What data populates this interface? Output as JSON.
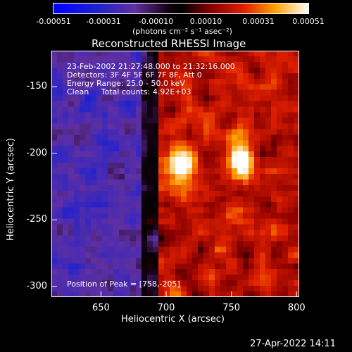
{
  "chart_data": {
    "type": "heatmap",
    "title": "Reconstructed RHESSI Image",
    "xlabel": "Heliocentric X (arcsec)",
    "ylabel": "Heliocentric Y (arcsec)",
    "xlim": [
      612,
      802
    ],
    "ylim": [
      -308,
      -123
    ],
    "x_ticks": [
      "650",
      "700",
      "750",
      "800"
    ],
    "y_ticks": [
      "-150",
      "-200",
      "-250",
      "-300"
    ],
    "x_tick_values": [
      650,
      700,
      750,
      800
    ],
    "y_tick_values": [
      -150,
      -200,
      -250,
      -300
    ],
    "colorbar": {
      "ticks": [
        "-0.00051",
        "-0.00031",
        "-0.00010",
        "0.00010",
        "0.00031",
        "0.00051"
      ],
      "tick_values": [
        -0.00051,
        -0.00031,
        -0.0001,
        0.0001,
        0.00031,
        0.00051
      ],
      "range": [
        -0.00051,
        0.00051
      ],
      "unit_label": "(photons cm⁻² s⁻¹ asec⁻²)"
    },
    "annotations": {
      "time": "23-Feb-2002 21:27:48.000 to 21:32:16.000",
      "detectors": "Detectors: 3F 4F 5F 6F 7F 8F, Att 0",
      "energy": "Energy Range: 25.0 - 50.0 keV",
      "clean": "Clean     Total counts: 4.92E+03",
      "peak": "Position of Peak = [758,-205]"
    },
    "peaks": [
      {
        "x": 758,
        "y": -205,
        "value": 0.00051
      },
      {
        "x": 713,
        "y": -209,
        "value": 0.00046
      }
    ],
    "grid": false
  },
  "footer": {
    "timestamp": "27-Apr-2022 14:11"
  }
}
